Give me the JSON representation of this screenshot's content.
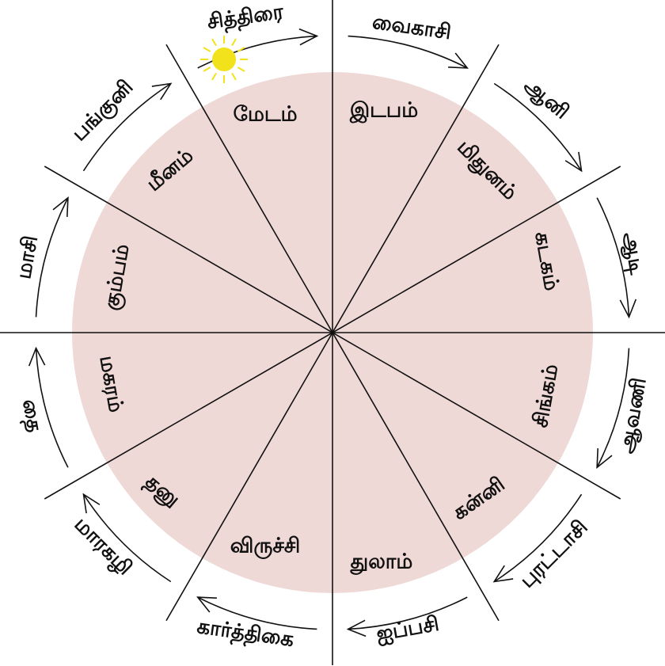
{
  "colors": {
    "wheel_fill": "#efd9d7",
    "lines": "#111111",
    "sun": "#f2e21c"
  },
  "signs": [
    "மேடம்",
    "இடபம்",
    "மிதுனம்",
    "கடகம்",
    "சிங்கம்",
    "கன்னி",
    "துலாம்",
    "விருச்சி",
    "தனு",
    "மகரம்",
    "கும்பம்",
    "மீனம்"
  ],
  "months": [
    "சித்திரை",
    "வைகாசி",
    "ஆனி",
    "ஆடி",
    "ஆவணி",
    "புரட்டாசி",
    "ஐப்பசி",
    "கார்த்திகை",
    "மாரகழி",
    "தை",
    "மாசி",
    "பங்குனி"
  ],
  "sun_icon": "sun-icon",
  "arrow_direction": "clockwise"
}
